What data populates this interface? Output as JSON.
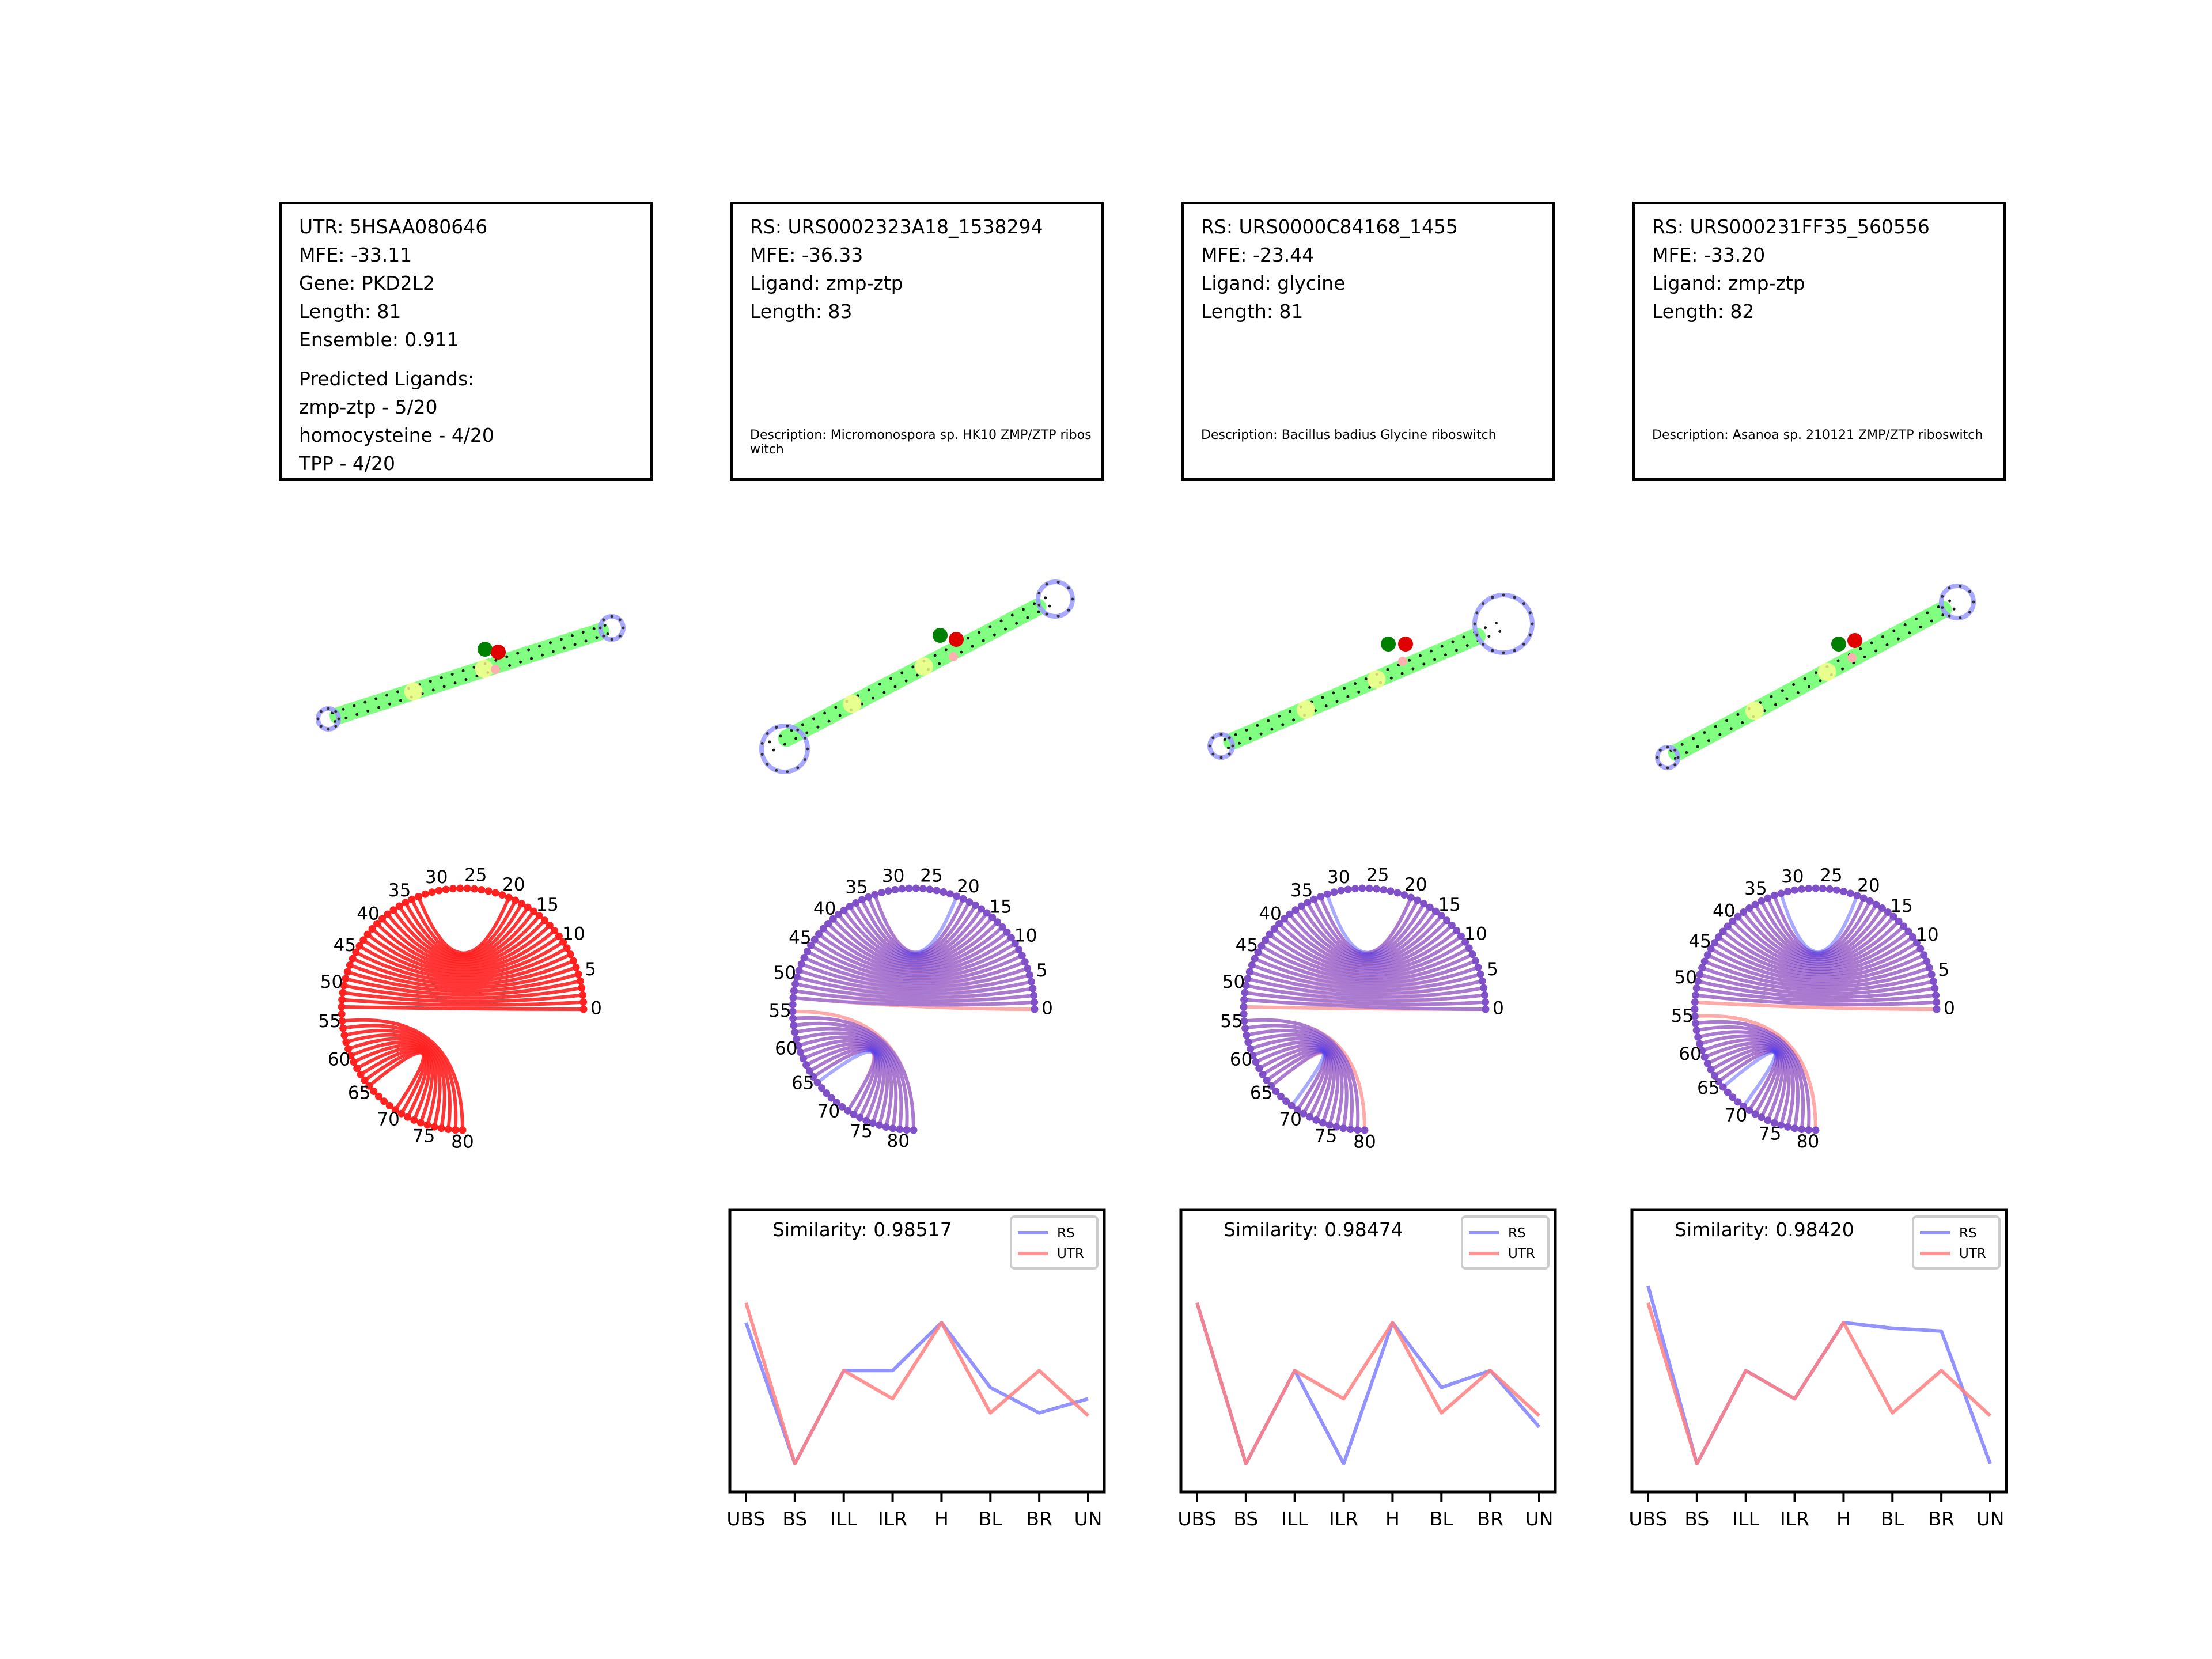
{
  "info_boxes": [
    {
      "lines": [
        "UTR: 5HSAA080646",
        "MFE: -33.11",
        "Gene: PKD2L2",
        "Length: 81",
        "Ensemble: 0.911"
      ],
      "ligands_title": "Predicted Ligands:",
      "ligands": [
        "zmp-ztp - 5/20",
        "homocysteine - 4/20",
        "TPP - 4/20"
      ],
      "description": ""
    },
    {
      "lines": [
        "RS: URS0002323A18_1538294",
        "MFE: -36.33",
        "Ligand: zmp-ztp",
        "Length: 83"
      ],
      "description": "Description: Micromonospora sp. HK10 ZMP/ZTP riboswitch"
    },
    {
      "lines": [
        "RS: URS0000C84168_1455",
        "MFE: -23.44",
        "Ligand: glycine",
        "Length: 81"
      ],
      "description": "Description: Bacillus badius Glycine riboswitch"
    },
    {
      "lines": [
        "RS: URS000231FF35_560556",
        "MFE: -33.20",
        "Ligand: zmp-ztp",
        "Length: 82"
      ],
      "description": "Description: Asanoa sp. 210121 ZMP/ZTP riboswitch"
    }
  ],
  "arc_diagrams": [
    {
      "length": 81,
      "tick_labels": [
        "0",
        "5",
        "10",
        "15",
        "20",
        "25",
        "30",
        "35",
        "40",
        "45",
        "50",
        "55",
        "60",
        "65",
        "70",
        "75",
        "80"
      ],
      "overlay": false
    },
    {
      "length": 83,
      "tick_labels": [
        "0",
        "5",
        "10",
        "15",
        "20",
        "25",
        "30",
        "35",
        "40",
        "45",
        "50",
        "55",
        "60",
        "65",
        "70",
        "75",
        "80"
      ],
      "overlay": true
    },
    {
      "length": 81,
      "tick_labels": [
        "0",
        "5",
        "10",
        "15",
        "20",
        "25",
        "30",
        "35",
        "40",
        "45",
        "50",
        "55",
        "60",
        "65",
        "70",
        "75",
        "80"
      ],
      "overlay": true
    },
    {
      "length": 82,
      "tick_labels": [
        "0",
        "5",
        "10",
        "15",
        "20",
        "25",
        "30",
        "35",
        "40",
        "45",
        "50",
        "55",
        "60",
        "65",
        "70",
        "75",
        "80"
      ],
      "overlay": true
    }
  ],
  "chart_data": [
    {
      "type": "line",
      "title": "Similarity: 0.98517",
      "categories": [
        "UBS",
        "BS",
        "ILL",
        "ILR",
        "H",
        "BL",
        "BR",
        "UN"
      ],
      "series": [
        {
          "name": "RS",
          "values": [
            0.6,
            0.1,
            0.43,
            0.43,
            0.6,
            0.37,
            0.28,
            0.33
          ]
        },
        {
          "name": "UTR",
          "values": [
            0.67,
            0.1,
            0.43,
            0.33,
            0.6,
            0.28,
            0.43,
            0.27
          ]
        }
      ],
      "ylim": [
        0,
        1
      ],
      "legend": "upper-right",
      "grid": false
    },
    {
      "type": "line",
      "title": "Similarity: 0.98474",
      "categories": [
        "UBS",
        "BS",
        "ILL",
        "ILR",
        "H",
        "BL",
        "BR",
        "UN"
      ],
      "series": [
        {
          "name": "RS",
          "values": [
            0.67,
            0.1,
            0.43,
            0.1,
            0.6,
            0.37,
            0.43,
            0.23
          ]
        },
        {
          "name": "UTR",
          "values": [
            0.67,
            0.1,
            0.43,
            0.33,
            0.6,
            0.28,
            0.43,
            0.27
          ]
        }
      ],
      "ylim": [
        0,
        1
      ],
      "legend": "upper-right",
      "grid": false
    },
    {
      "type": "line",
      "title": "Similarity: 0.98420",
      "categories": [
        "UBS",
        "BS",
        "ILL",
        "ILR",
        "H",
        "BL",
        "BR",
        "UN"
      ],
      "series": [
        {
          "name": "RS",
          "values": [
            0.73,
            0.1,
            0.43,
            0.33,
            0.6,
            0.58,
            0.57,
            0.1
          ]
        },
        {
          "name": "UTR",
          "values": [
            0.67,
            0.1,
            0.43,
            0.33,
            0.6,
            0.28,
            0.43,
            0.27
          ]
        }
      ],
      "ylim": [
        0,
        1
      ],
      "legend": "upper-right",
      "grid": false
    }
  ],
  "colors": {
    "rs": "#8080ff",
    "utr": "#ff8080",
    "red": "#ff2020",
    "stem": "#80ff80",
    "loop": "#a0a0ff",
    "bulge": "#ffff90",
    "start": "#008000",
    "end": "#e00000"
  }
}
